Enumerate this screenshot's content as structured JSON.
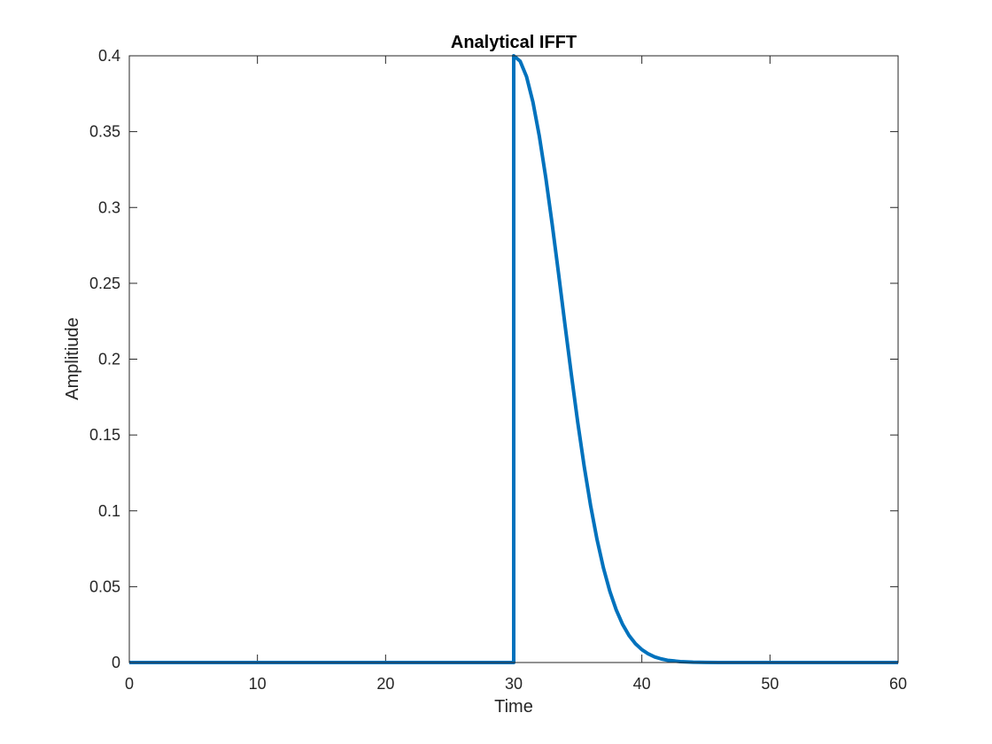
{
  "chart_data": {
    "type": "line",
    "title": "Analytical IFFT",
    "xlabel": "Time",
    "ylabel": "Amplitiude",
    "xlim": [
      0,
      60
    ],
    "ylim": [
      0,
      0.4
    ],
    "x_ticks": [
      "0",
      "10",
      "20",
      "30",
      "40",
      "50",
      "60"
    ],
    "y_ticks": [
      "0",
      "0.05",
      "0.1",
      "0.15",
      "0.2",
      "0.25",
      "0.3",
      "0.35",
      "0.4"
    ],
    "grid": false,
    "legend": "none",
    "line_color": "#0072BD",
    "series": [
      {
        "x": [
          0,
          30,
          30,
          30.5,
          31,
          31.5,
          32,
          32.5,
          33,
          33.5,
          34,
          34.5,
          35,
          35.5,
          36,
          36.5,
          37,
          37.5,
          38,
          38.5,
          39,
          39.5,
          40,
          40.5,
          41,
          41.5,
          42,
          43,
          44,
          45,
          46,
          48,
          50,
          55,
          60
        ],
        "y": [
          0,
          0,
          0.4,
          0.3965,
          0.3863,
          0.3695,
          0.347,
          0.3198,
          0.2891,
          0.2564,
          0.2227,
          0.1898,
          0.1582,
          0.1293,
          0.1035,
          0.0812,
          0.0624,
          0.047,
          0.0347,
          0.0251,
          0.0178,
          0.0124,
          0.0085,
          0.0057,
          0.0037,
          0.0024,
          0.0015,
          0.0006,
          0.0002,
          7e-05,
          2e-05,
          0,
          0,
          0,
          0
        ]
      }
    ]
  }
}
